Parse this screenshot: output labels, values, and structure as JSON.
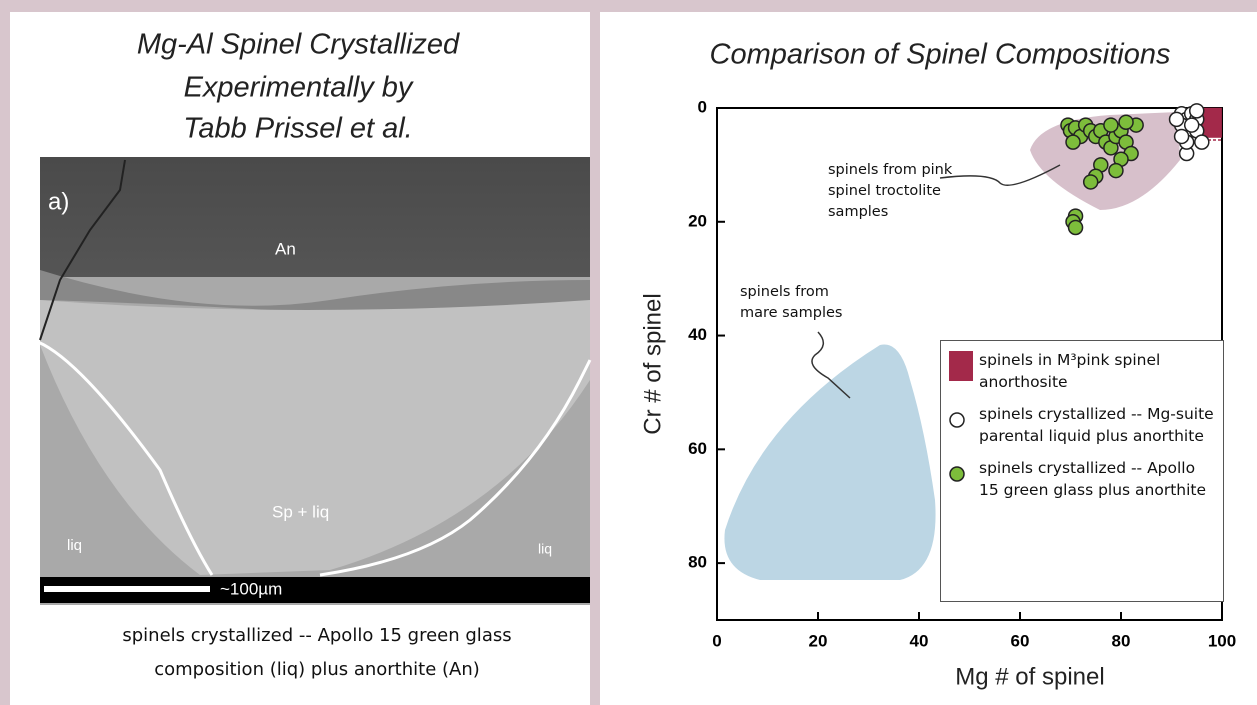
{
  "left_panel": {
    "title": [
      "Mg-Al Spinel Crystallized",
      "Experimentally by",
      "Tabb Prissel et al."
    ],
    "image_labels": {
      "panel": "a)",
      "top": "An",
      "center": "Sp + liq",
      "left": "liq",
      "right": "liq"
    },
    "scale_bar": "~100µm",
    "caption": [
      "spinels crystallized -- Apollo 15 green glass",
      "composition (liq) plus anorthite (An)"
    ]
  },
  "chart_data": {
    "type": "scatter",
    "title": "Comparison of Spinel Compositions",
    "x_label": "Mg # of spinel",
    "y_label": "Cr # of spinel",
    "xlim": [
      0,
      100
    ],
    "ylim": [
      0,
      90
    ],
    "y_inverted": true,
    "xticks": [
      0,
      20,
      40,
      60,
      80,
      100
    ],
    "yticks": [
      0,
      20,
      40,
      60,
      80
    ],
    "annotations": [
      "spinels from pink spinel troctolite samples",
      "spinels from mare samples"
    ],
    "series": [
      {
        "name": "spinels in M³pink spinel anorthosite",
        "marker": "square",
        "color": "#a3294a",
        "x": [
          97.6
        ],
        "values": [
          2.6
        ]
      },
      {
        "name": "spinels crystallized -- Mg-suite parental liquid plus anorthite",
        "marker": "circle",
        "color": "#ffffff",
        "x": [
          92,
          93,
          94,
          95,
          93,
          94,
          92,
          95,
          93,
          96,
          94,
          91,
          95,
          93,
          92
        ],
        "values": [
          1,
          2,
          1,
          2,
          4,
          5,
          3,
          4,
          8,
          6,
          3,
          2,
          0.5,
          6,
          5
        ]
      },
      {
        "name": "spinels crystallized -- Apollo 15 green glass plus anorthite",
        "marker": "circle",
        "color": "#7dbd3b",
        "x": [
          69.5,
          70,
          71,
          72,
          70.5,
          73,
          74,
          75,
          76,
          77,
          78,
          79,
          80,
          81,
          82,
          83,
          80,
          79,
          76,
          75,
          74,
          71,
          70.5,
          71,
          78,
          81
        ],
        "values": [
          3,
          4,
          3.5,
          5,
          6,
          3,
          4,
          5,
          4,
          6,
          7,
          5,
          4,
          6,
          8,
          3,
          9,
          11,
          10,
          12,
          13,
          19,
          20,
          21,
          3,
          2.5
        ]
      }
    ]
  }
}
